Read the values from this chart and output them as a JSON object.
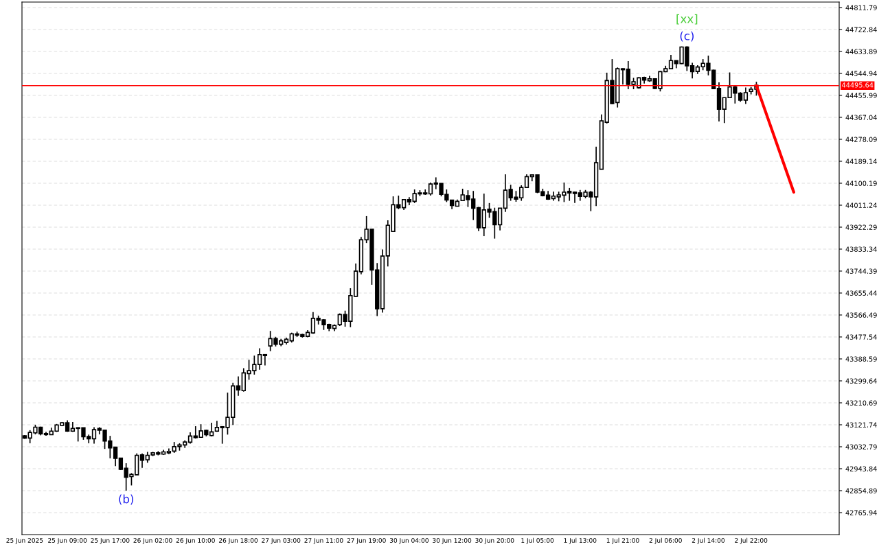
{
  "chart_data": {
    "type": "candlestick",
    "categories": [
      "25 Jun 2025",
      null,
      null,
      null,
      null,
      null,
      null,
      null,
      "25 Jun 09:00",
      null,
      null,
      null,
      null,
      null,
      null,
      null,
      "25 Jun 17:00",
      null,
      null,
      null,
      null,
      null,
      null,
      null,
      "26 Jun 02:00",
      null,
      null,
      null,
      null,
      null,
      null,
      null,
      "26 Jun 10:00",
      null,
      null,
      null,
      null,
      null,
      null,
      null,
      "26 Jun 18:00",
      null,
      null,
      null,
      null,
      null,
      null,
      null,
      "27 Jun 03:00",
      null,
      null,
      null,
      null,
      null,
      null,
      null,
      "27 Jun 11:00",
      null,
      null,
      null,
      null,
      null,
      null,
      null,
      "27 Jun 19:00",
      null,
      null,
      null,
      null,
      null,
      null,
      null,
      "30 Jun 04:00",
      null,
      null,
      null,
      null,
      null,
      null,
      null,
      "30 Jun 12:00",
      null,
      null,
      null,
      null,
      null,
      null,
      null,
      "30 Jun 20:00",
      null,
      null,
      null,
      null,
      null,
      null,
      null,
      "1 Jul 05:00",
      null,
      null,
      null,
      null,
      null,
      null,
      null,
      "1 Jul 13:00",
      null,
      null,
      null,
      null,
      null,
      null,
      null,
      "1 Jul 21:00",
      null,
      null,
      null,
      null,
      null,
      null,
      null,
      "2 Jul 06:00",
      null,
      null,
      null,
      null,
      null,
      null,
      null,
      "2 Jul 14:00",
      null,
      null,
      null,
      null,
      null,
      null,
      null,
      "2 Jul 22:00",
      null,
      null,
      null,
      null,
      null,
      null,
      null,
      null,
      null,
      null,
      null,
      null,
      null,
      null,
      null,
      null
    ],
    "ohlc": [
      [
        43077,
        43080,
        43065,
        43068
      ],
      [
        43068,
        43100,
        43047,
        43091
      ],
      [
        43089,
        43122,
        43083,
        43112
      ],
      [
        43112,
        43114,
        43079,
        43085
      ],
      [
        43086,
        43093,
        43077,
        43082
      ],
      [
        43082,
        43110,
        43082,
        43096
      ],
      [
        43096,
        43125,
        43093,
        43121
      ],
      [
        43119,
        43133,
        43116,
        43130
      ],
      [
        43130,
        43140,
        43093,
        43096
      ],
      [
        43096,
        43133,
        43093,
        43107
      ],
      [
        43110,
        43110,
        43054,
        43107
      ],
      [
        43110,
        43110,
        43061,
        43073
      ],
      [
        43074,
        43082,
        43047,
        43065
      ],
      [
        43065,
        43112,
        43045,
        43102
      ],
      [
        43107,
        43112,
        43083,
        43100
      ],
      [
        43100,
        43100,
        43024,
        43056
      ],
      [
        43056,
        43077,
        42986,
        43028
      ],
      [
        43031,
        43031,
        42954,
        42986
      ],
      [
        42987,
        42987,
        42938,
        42941
      ],
      [
        42946,
        42966,
        42855,
        42909
      ],
      [
        42912,
        42926,
        42876,
        42921
      ],
      [
        42919,
        43006,
        42919,
        42998
      ],
      [
        43000,
        43006,
        42947,
        42978
      ],
      [
        42980,
        43012,
        42968,
        42998
      ],
      [
        43000,
        43012,
        42995,
        43008
      ],
      [
        43008,
        43015,
        42998,
        43003
      ],
      [
        43003,
        43020,
        43000,
        43012
      ],
      [
        43008,
        43026,
        43003,
        43014
      ],
      [
        43015,
        43052,
        43008,
        43033
      ],
      [
        43034,
        43047,
        43017,
        43040
      ],
      [
        43040,
        43059,
        43028,
        43052
      ],
      [
        43051,
        43091,
        43045,
        43076
      ],
      [
        43076,
        43116,
        43066,
        43070
      ],
      [
        43071,
        43124,
        43071,
        43097
      ],
      [
        43099,
        43102,
        43075,
        43082
      ],
      [
        43078,
        43130,
        43075,
        43093
      ],
      [
        43096,
        43138,
        43093,
        43111
      ],
      [
        43114,
        43114,
        43045,
        43110
      ],
      [
        43111,
        43252,
        43082,
        43152
      ],
      [
        43152,
        43292,
        43121,
        43279
      ],
      [
        43279,
        43318,
        43239,
        43263
      ],
      [
        43260,
        43351,
        43256,
        43332
      ],
      [
        43329,
        43385,
        43304,
        43341
      ],
      [
        43341,
        43402,
        43325,
        43366
      ],
      [
        43366,
        43432,
        43345,
        43406
      ],
      [
        43406,
        43408,
        43362,
        43402
      ],
      [
        43441,
        43502,
        43420,
        43471
      ],
      [
        43471,
        43478,
        43439,
        43448
      ],
      [
        43448,
        43470,
        43440,
        43462
      ],
      [
        43455,
        43475,
        43447,
        43468
      ],
      [
        43462,
        43495,
        43455,
        43490
      ],
      [
        43490,
        43499,
        43478,
        43485
      ],
      [
        43487,
        43490,
        43475,
        43480
      ],
      [
        43480,
        43505,
        43476,
        43496
      ],
      [
        43494,
        43578,
        43490,
        43553
      ],
      [
        43553,
        43564,
        43528,
        43545
      ],
      [
        43547,
        43550,
        43506,
        43527
      ],
      [
        43528,
        43531,
        43501,
        43513
      ],
      [
        43512,
        43528,
        43501,
        43524
      ],
      [
        43527,
        43573,
        43522,
        43568
      ],
      [
        43568,
        43584,
        43519,
        43541
      ],
      [
        43541,
        43675,
        43517,
        43645
      ],
      [
        43642,
        43775,
        43642,
        43744
      ],
      [
        43742,
        43883,
        43731,
        43871
      ],
      [
        43871,
        43967,
        43858,
        43914
      ],
      [
        43914,
        43914,
        43689,
        43749
      ],
      [
        43749,
        43777,
        43562,
        43592
      ],
      [
        43592,
        43832,
        43576,
        43805
      ],
      [
        43806,
        43950,
        43763,
        43930
      ],
      [
        43905,
        44047,
        43905,
        44013
      ],
      [
        44013,
        44050,
        43995,
        44001
      ],
      [
        44001,
        44036,
        43992,
        44034
      ],
      [
        44034,
        44044,
        44011,
        44025
      ],
      [
        44027,
        44075,
        44020,
        44058
      ],
      [
        44061,
        44072,
        44048,
        44057
      ],
      [
        44061,
        44075,
        44053,
        44057
      ],
      [
        44057,
        44103,
        44050,
        44097
      ],
      [
        44101,
        44124,
        44076,
        44097
      ],
      [
        44099,
        44099,
        44047,
        44055
      ],
      [
        44055,
        44075,
        44024,
        44032
      ],
      [
        44032,
        44032,
        43995,
        44010
      ],
      [
        44007,
        44034,
        44007,
        44027
      ],
      [
        44030,
        44078,
        44030,
        44053
      ],
      [
        44050,
        44072,
        44004,
        44034
      ],
      [
        44036,
        44069,
        43951,
        43999
      ],
      [
        44001,
        44004,
        43906,
        43920
      ],
      [
        43920,
        44058,
        43886,
        43992
      ],
      [
        43995,
        44020,
        43960,
        43984
      ],
      [
        43985,
        44001,
        43876,
        43932
      ],
      [
        43932,
        43999,
        43909,
        43999
      ],
      [
        43999,
        44136,
        43984,
        44072
      ],
      [
        44075,
        44094,
        44029,
        44041
      ],
      [
        44044,
        44069,
        44025,
        44036
      ],
      [
        44041,
        44092,
        44029,
        44083
      ],
      [
        44083,
        44136,
        44083,
        44127
      ],
      [
        44127,
        44136,
        44108,
        44134
      ],
      [
        44134,
        44136,
        44060,
        44064
      ],
      [
        44066,
        44078,
        44047,
        44050
      ],
      [
        44052,
        44069,
        44033,
        44036
      ],
      [
        44038,
        44066,
        44029,
        44048
      ],
      [
        44045,
        44066,
        44027,
        44053
      ],
      [
        44052,
        44103,
        44024,
        44064
      ],
      [
        44067,
        44081,
        44029,
        44061
      ],
      [
        44064,
        44066,
        44020,
        44059
      ],
      [
        44061,
        44073,
        44029,
        44047
      ],
      [
        44047,
        44073,
        44039,
        44064
      ],
      [
        44064,
        44069,
        43987,
        44045
      ],
      [
        44045,
        44248,
        44008,
        44183
      ],
      [
        44157,
        44379,
        44157,
        44353
      ],
      [
        44347,
        44548,
        44342,
        44516
      ],
      [
        44516,
        44603,
        44420,
        44423
      ],
      [
        44427,
        44569,
        44407,
        44564
      ],
      [
        44564,
        44566,
        44500,
        44560
      ],
      [
        44562,
        44595,
        44481,
        44501
      ],
      [
        44501,
        44527,
        44481,
        44511
      ],
      [
        44487,
        44530,
        44483,
        44527
      ],
      [
        44529,
        44532,
        44504,
        44518
      ],
      [
        44515,
        44535,
        44511,
        44523
      ],
      [
        44523,
        44525,
        44481,
        44484
      ],
      [
        44484,
        44555,
        44472,
        44552
      ],
      [
        44552,
        44576,
        44550,
        44564
      ],
      [
        44564,
        44620,
        44562,
        44597
      ],
      [
        44597,
        44597,
        44566,
        44585
      ],
      [
        44585,
        44654,
        44583,
        44652
      ],
      [
        44652,
        44655,
        44555,
        44576
      ],
      [
        44576,
        44588,
        44525,
        44552
      ],
      [
        44553,
        44578,
        44543,
        44571
      ],
      [
        44572,
        44603,
        44558,
        44586
      ],
      [
        44586,
        44617,
        44537,
        44558
      ],
      [
        44558,
        44560,
        44481,
        44483
      ],
      [
        44484,
        44509,
        44350,
        44400
      ],
      [
        44400,
        44447,
        44344,
        44447
      ],
      [
        44447,
        44549,
        44445,
        44490
      ],
      [
        44490,
        44495,
        44423,
        44465
      ],
      [
        44465,
        44469,
        44430,
        44437
      ],
      [
        44437,
        44488,
        44421,
        44467
      ],
      [
        44472,
        44490,
        44460,
        44481
      ],
      [
        44481,
        44511,
        44455,
        44497
      ],
      null,
      null,
      null,
      null,
      null,
      null,
      null,
      null,
      null,
      null,
      null,
      null,
      null,
      null,
      null
    ],
    "series": [
      {
        "type": "line",
        "color": "#ff0000",
        "values": [
          null,
          null,
          null,
          null,
          null,
          null,
          null,
          null,
          null,
          null,
          null,
          null,
          null,
          null,
          null,
          null,
          null,
          null,
          null,
          null,
          null,
          null,
          null,
          null,
          null,
          null,
          null,
          null,
          null,
          null,
          null,
          null,
          null,
          null,
          null,
          null,
          null,
          null,
          null,
          null,
          null,
          null,
          null,
          null,
          null,
          null,
          null,
          null,
          null,
          null,
          null,
          null,
          null,
          null,
          null,
          null,
          null,
          null,
          null,
          null,
          null,
          null,
          null,
          null,
          null,
          null,
          null,
          null,
          null,
          null,
          null,
          null,
          null,
          null,
          null,
          null,
          null,
          null,
          null,
          null,
          null,
          null,
          null,
          null,
          null,
          null,
          null,
          null,
          null,
          null,
          null,
          null,
          null,
          null,
          null,
          null,
          null,
          null,
          null,
          null,
          null,
          null,
          null,
          null,
          null,
          null,
          null,
          null,
          null,
          null,
          null,
          null,
          null,
          null,
          null,
          null,
          null,
          null,
          null,
          null,
          null,
          null,
          null,
          null,
          null,
          null,
          null,
          null,
          null,
          null,
          null,
          null,
          null,
          null,
          null,
          null,
          null,
          44496,
          null,
          null,
          null,
          null,
          null,
          null,
          44064,
          null,
          null,
          null,
          null,
          null,
          null,
          null,
          null
        ]
      }
    ],
    "ylim": [
      42677,
      44834
    ],
    "yticks": [
      44811.79,
      44722.84,
      44633.89,
      44544.94,
      44455.99,
      44367.04,
      44278.09,
      44189.14,
      44100.19,
      44011.24,
      43922.29,
      43833.34,
      43744.39,
      43655.44,
      43566.49,
      43477.54,
      43388.59,
      43299.64,
      43210.69,
      43121.74,
      43032.79,
      42943.84,
      42854.89,
      42765.94
    ],
    "ref_lines": [
      {
        "axis": "y",
        "value": 44495.64,
        "label": "44495.64",
        "color": "#ff0000"
      }
    ],
    "annotations": [
      {
        "text": "(b)",
        "y": 42855
      },
      {
        "text": "(c)",
        "y": 44655
      },
      {
        "text": "[xx]",
        "y": 44655
      }
    ],
    "grid": true
  }
}
